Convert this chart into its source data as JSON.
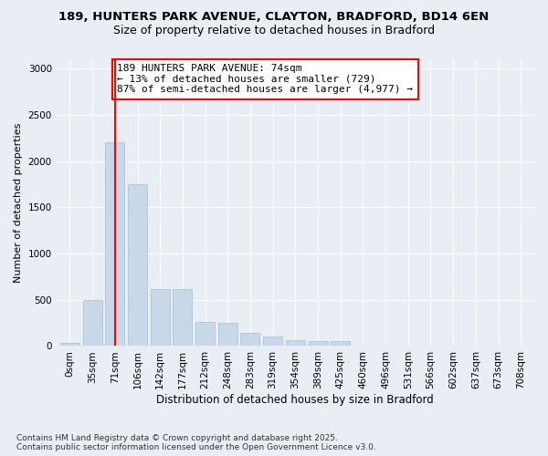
{
  "title_line1": "189, HUNTERS PARK AVENUE, CLAYTON, BRADFORD, BD14 6EN",
  "title_line2": "Size of property relative to detached houses in Bradford",
  "xlabel": "Distribution of detached houses by size in Bradford",
  "ylabel": "Number of detached properties",
  "bar_color": "#c8d8e8",
  "bar_edge_color": "#a8bece",
  "vline_color": "red",
  "vline_x": 2,
  "categories": [
    "0sqm",
    "35sqm",
    "71sqm",
    "106sqm",
    "142sqm",
    "177sqm",
    "212sqm",
    "248sqm",
    "283sqm",
    "319sqm",
    "354sqm",
    "389sqm",
    "425sqm",
    "460sqm",
    "496sqm",
    "531sqm",
    "566sqm",
    "602sqm",
    "637sqm",
    "673sqm",
    "708sqm"
  ],
  "values": [
    30,
    500,
    2200,
    1750,
    620,
    620,
    260,
    255,
    140,
    100,
    65,
    55,
    50,
    5,
    5,
    3,
    3,
    2,
    2,
    2,
    2
  ],
  "ylim": [
    0,
    3100
  ],
  "yticks": [
    0,
    500,
    1000,
    1500,
    2000,
    2500,
    3000
  ],
  "annotation_text": "189 HUNTERS PARK AVENUE: 74sqm\n← 13% of detached houses are smaller (729)\n87% of semi-detached houses are larger (4,977) →",
  "annotation_box_color": "white",
  "annotation_box_edge": "red",
  "footer_line1": "Contains HM Land Registry data © Crown copyright and database right 2025.",
  "footer_line2": "Contains public sector information licensed under the Open Government Licence v3.0.",
  "background_color": "#e8eef4",
  "plot_bg_color": "#e8eef4",
  "grid_color": "white",
  "title_fontsize": 9.5,
  "subtitle_fontsize": 9,
  "ylabel_fontsize": 8,
  "xlabel_fontsize": 8.5,
  "tick_fontsize": 7.5,
  "footer_fontsize": 6.5,
  "annot_fontsize": 8
}
